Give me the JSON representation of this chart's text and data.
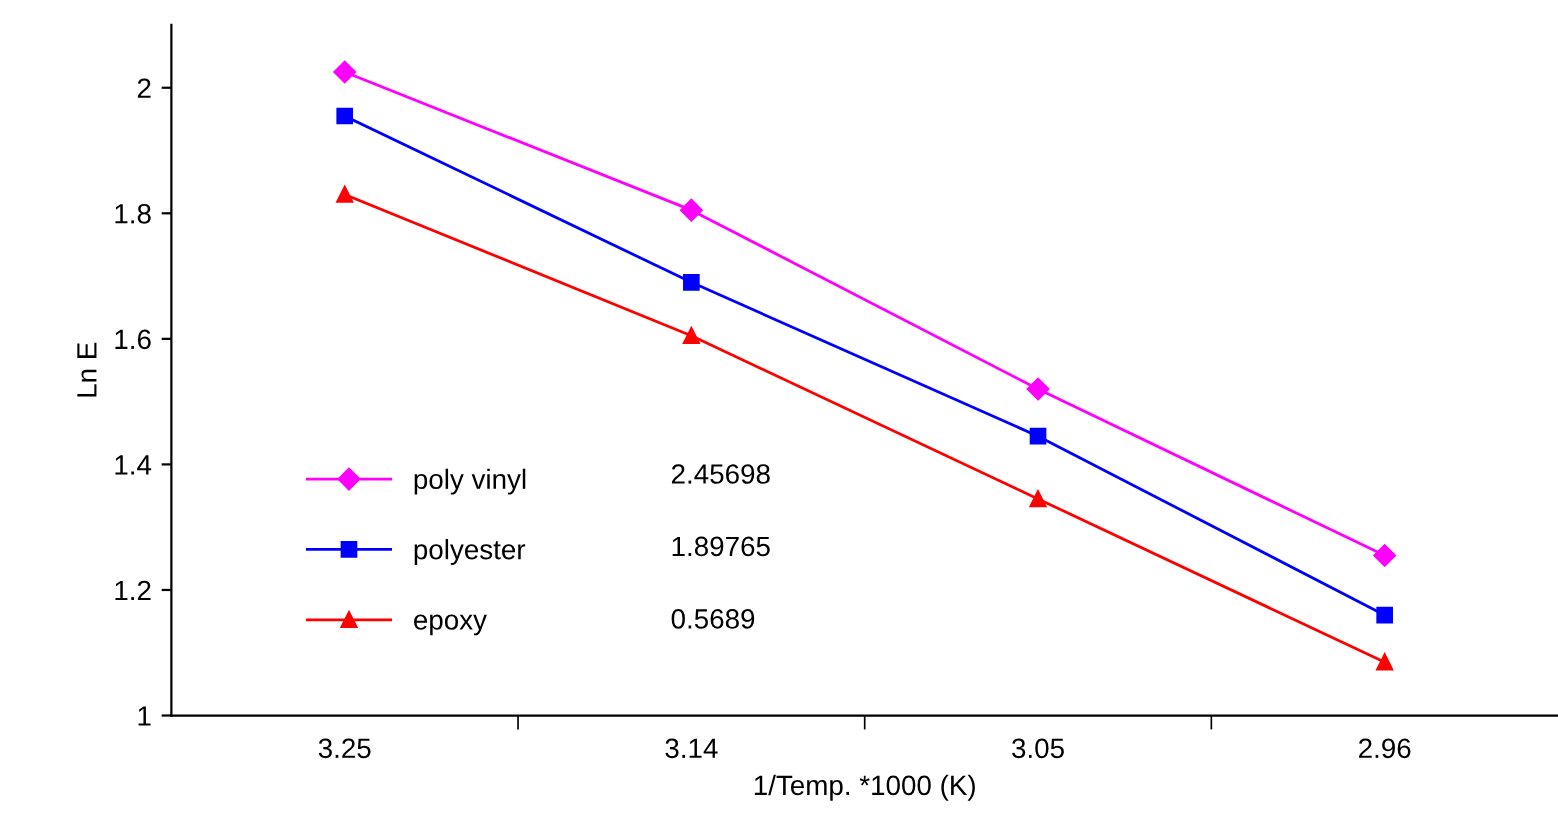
{
  "chart_data": {
    "type": "line",
    "xlabel": "1/Temp. *1000 (K)",
    "ylabel": "Ln E",
    "categories": [
      "3.25",
      "3.14",
      "3.05",
      "2.96"
    ],
    "series": [
      {
        "name": "poly vinyl",
        "color": "#ff00ff",
        "marker": "diamond",
        "values": [
          2.025,
          1.805,
          1.52,
          1.255
        ]
      },
      {
        "name": "polyester",
        "color": "#0000ff",
        "marker": "square",
        "values": [
          1.955,
          1.69,
          1.445,
          1.16
        ]
      },
      {
        "name": "epoxy",
        "color": "#ff0000",
        "marker": "triangle",
        "values": [
          1.83,
          1.605,
          1.345,
          1.085
        ]
      }
    ],
    "annotations": [
      "2.45698",
      "1.89765",
      "0.5689"
    ],
    "ylim": [
      1,
      2.1
    ],
    "yticks": [
      1,
      1.2,
      1.4,
      1.6,
      1.8,
      2
    ],
    "grid": false,
    "legend": "bottom left",
    "line_style": "solid"
  }
}
